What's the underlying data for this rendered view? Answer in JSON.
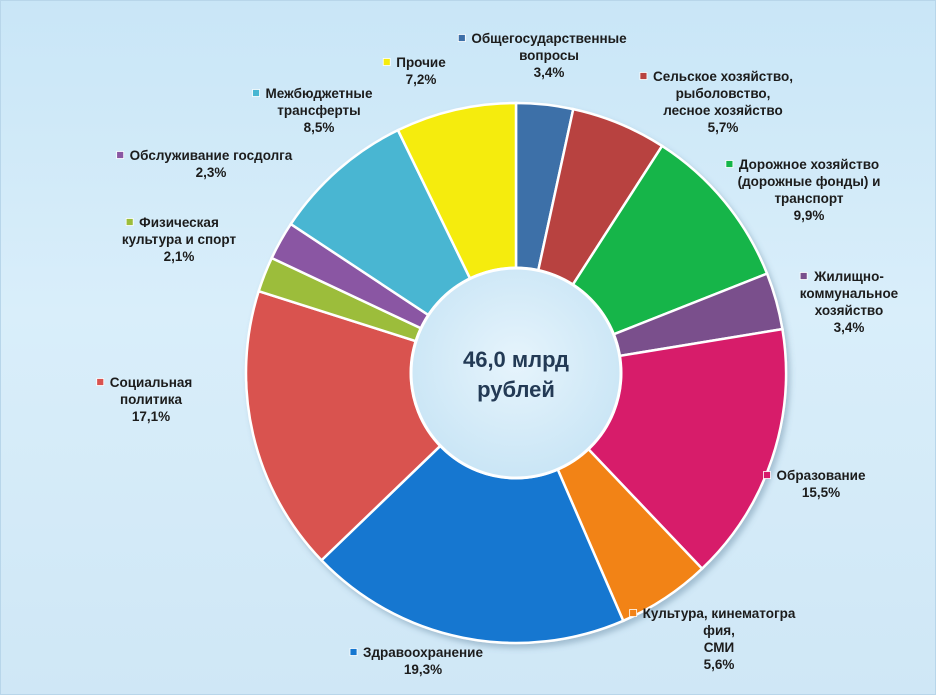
{
  "chart_data": {
    "type": "pie",
    "variant": "donut",
    "center_label": [
      "46,0 млрд",
      "рублей"
    ],
    "start_angle_deg": 0,
    "slices": [
      {
        "name": [
          "Общегосударственные",
          "вопросы"
        ],
        "value_label": "3,4%",
        "value": 3.4,
        "color": "#3d6fa8"
      },
      {
        "name": [
          "Сельское хозяйство,",
          "рыболовство,",
          "лесное хозяйство"
        ],
        "value_label": "5,7%",
        "value": 5.7,
        "color": "#b8423f"
      },
      {
        "name": [
          "Дорожное хозяйство",
          "(дорожные фонды) и",
          "транспорт"
        ],
        "value_label": "9,9%",
        "value": 9.9,
        "color": "#14b548"
      },
      {
        "name": [
          "Жилищно-",
          "коммунальное",
          "хозяйство"
        ],
        "value_label": "3,4%",
        "value": 3.4,
        "color": "#7a4f8c"
      },
      {
        "name": [
          "Образование"
        ],
        "value_label": "15,5%",
        "value": 15.5,
        "color": "#d71a6b"
      },
      {
        "name": [
          "Культура, кинематогра",
          "фия,",
          "СМИ"
        ],
        "value_label": "5,6%",
        "value": 5.6,
        "color": "#f28318"
      },
      {
        "name": [
          "Здравоохранение"
        ],
        "value_label": "19,3%",
        "value": 19.3,
        "color": "#1577d0"
      },
      {
        "name": [
          "Социальная",
          "политика"
        ],
        "value_label": "17,1%",
        "value": 17.1,
        "color": "#d9534f"
      },
      {
        "name": [
          "Физическая",
          "культура и спорт"
        ],
        "value_label": "2,1%",
        "value": 2.1,
        "color": "#9cbd3a"
      },
      {
        "name": [
          "Обслуживание госдолга"
        ],
        "value_label": "2,3%",
        "value": 2.3,
        "color": "#8a57a3"
      },
      {
        "name": [
          "Межбюджетные",
          "трансферты"
        ],
        "value_label": "8,5%",
        "value": 8.5,
        "color": "#48b6d2"
      },
      {
        "name": [
          "Прочие"
        ],
        "value_label": "7,2%",
        "value": 7.2,
        "color": "#f5ec0c"
      }
    ]
  }
}
